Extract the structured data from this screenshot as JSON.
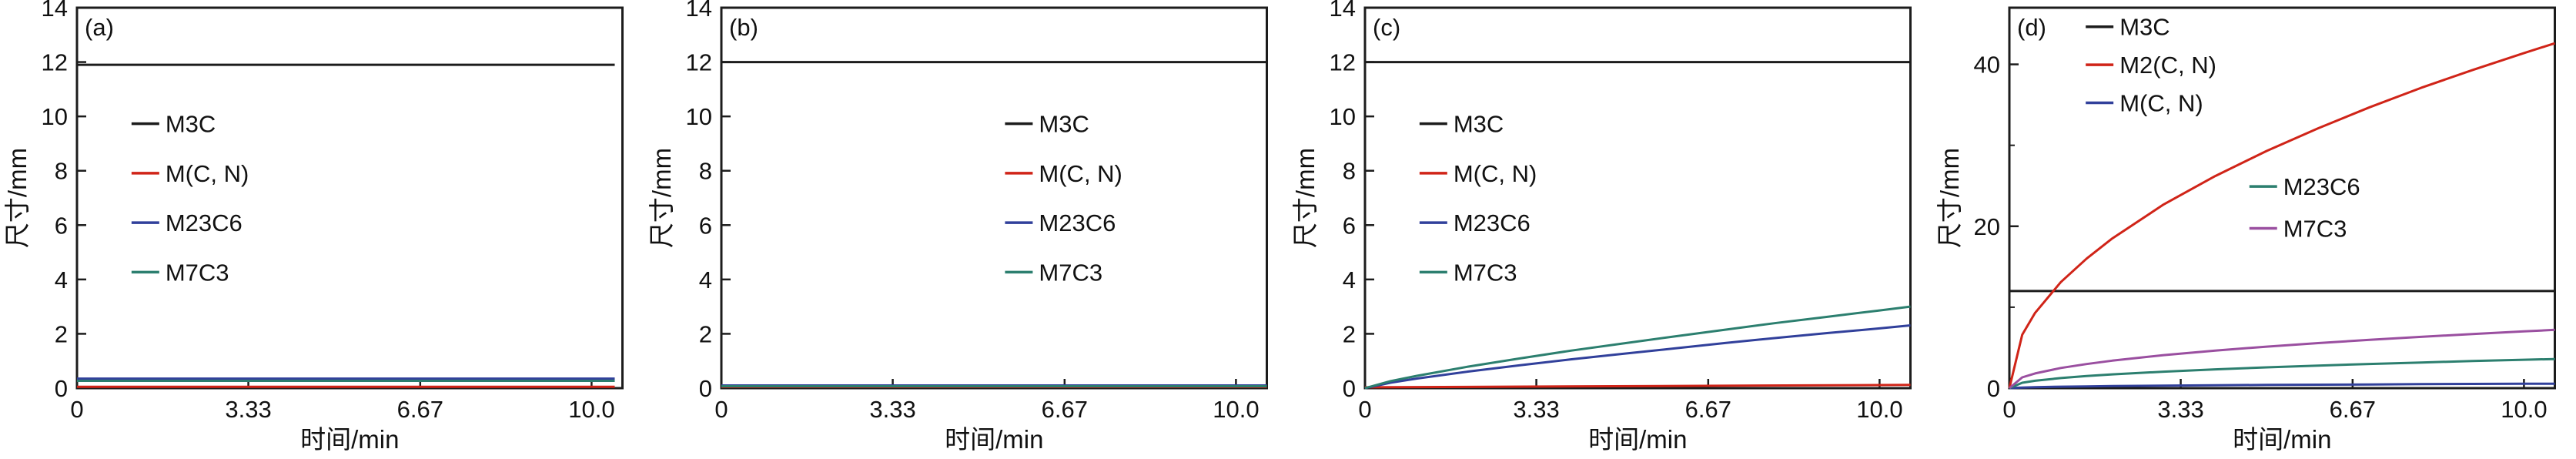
{
  "theme": {
    "background": "#ffffff",
    "axis_color": "#1c1c1c",
    "text_color": "#111111"
  },
  "chart_data": [
    {
      "type": "line",
      "panel_id": "a",
      "panel_label": "(a)",
      "xlabel": "时间/min",
      "ylabel": "尺寸/mm",
      "xlim": [
        0,
        10.6
      ],
      "ylim": [
        0,
        14
      ],
      "xticks": [
        0,
        3.33,
        6.67,
        10.0
      ],
      "xtick_labels": [
        "0",
        "3.33",
        "6.67",
        "10.0"
      ],
      "yticks": [
        0,
        2,
        4,
        6,
        8,
        10,
        12,
        14
      ],
      "ytick_labels": [
        "0",
        "2",
        "4",
        "6",
        "8",
        "10",
        "12",
        "14"
      ],
      "yticks_minor": [],
      "grid": false,
      "legend_position": "inside-left",
      "series": [
        {
          "name": "M3C",
          "color": "#1c1c1c",
          "x": [
            0,
            10.45
          ],
          "y": [
            11.9,
            11.9
          ],
          "legend_pos": [
            0.1,
            0.695
          ]
        },
        {
          "name": "M(C, N)",
          "color": "#d02418",
          "x": [
            0,
            10.45
          ],
          "y": [
            0.05,
            0.05
          ],
          "legend_pos": [
            0.1,
            0.565
          ]
        },
        {
          "name": "M23C6",
          "color": "#31409b",
          "x": [
            0,
            10.45
          ],
          "y": [
            0.35,
            0.35
          ],
          "legend_pos": [
            0.1,
            0.435
          ]
        },
        {
          "name": "M7C3",
          "color": "#2c7f6f",
          "x": [
            0,
            10.45
          ],
          "y": [
            0.27,
            0.27
          ],
          "legend_pos": [
            0.1,
            0.305
          ]
        }
      ]
    },
    {
      "type": "line",
      "panel_id": "b",
      "panel_label": "(b)",
      "xlabel": "时间/min",
      "ylabel": "尺寸/mm",
      "xlim": [
        0,
        10.6
      ],
      "ylim": [
        0,
        14
      ],
      "xticks": [
        0,
        3.33,
        6.67,
        10.0
      ],
      "xtick_labels": [
        "0",
        "3.33",
        "6.67",
        "10.0"
      ],
      "yticks": [
        0,
        2,
        4,
        6,
        8,
        10,
        12,
        14
      ],
      "ytick_labels": [
        "0",
        "2",
        "4",
        "6",
        "8",
        "10",
        "12",
        "14"
      ],
      "yticks_minor": [],
      "grid": false,
      "legend_position": "inside-right",
      "series": [
        {
          "name": "M3C",
          "color": "#1c1c1c",
          "x": [
            0,
            10.6
          ],
          "y": [
            12.0,
            12.0
          ],
          "legend_pos": [
            0.52,
            0.695
          ]
        },
        {
          "name": "M(C, N)",
          "color": "#d02418",
          "x": [
            0,
            10.6
          ],
          "y": [
            0.05,
            0.05
          ],
          "legend_pos": [
            0.52,
            0.565
          ]
        },
        {
          "name": "M23C6",
          "color": "#31409b",
          "x": [
            0,
            10.6
          ],
          "y": [
            0.1,
            0.1
          ],
          "legend_pos": [
            0.52,
            0.435
          ]
        },
        {
          "name": "M7C3",
          "color": "#2c7f6f",
          "x": [
            0,
            10.6
          ],
          "y": [
            0.07,
            0.07
          ],
          "legend_pos": [
            0.52,
            0.305
          ]
        }
      ]
    },
    {
      "type": "line",
      "panel_id": "c",
      "panel_label": "(c)",
      "xlabel": "时间/min",
      "ylabel": "尺寸/mm",
      "xlim": [
        0,
        10.6
      ],
      "ylim": [
        0,
        14
      ],
      "xticks": [
        0,
        3.33,
        6.67,
        10.0
      ],
      "xtick_labels": [
        "0",
        "3.33",
        "6.67",
        "10.0"
      ],
      "yticks": [
        0,
        2,
        4,
        6,
        8,
        10,
        12,
        14
      ],
      "ytick_labels": [
        "0",
        "2",
        "4",
        "6",
        "8",
        "10",
        "12",
        "14"
      ],
      "yticks_minor": [],
      "grid": false,
      "legend_position": "inside-left",
      "series": [
        {
          "name": "M3C",
          "color": "#1c1c1c",
          "x": [
            0,
            10.6
          ],
          "y": [
            12.0,
            12.0
          ],
          "legend_pos": [
            0.1,
            0.695
          ]
        },
        {
          "name": "M(C, N)",
          "color": "#d02418",
          "x": [
            0,
            10.6
          ],
          "y": [
            0.03,
            0.12
          ],
          "legend_pos": [
            0.1,
            0.565
          ]
        },
        {
          "name": "M23C6",
          "color": "#31409b",
          "x": [
            0,
            0.5,
            1,
            2,
            3,
            4,
            5,
            6,
            7,
            8,
            9,
            10,
            10.6
          ],
          "y": [
            0,
            0.2,
            0.35,
            0.61,
            0.84,
            1.06,
            1.26,
            1.46,
            1.66,
            1.85,
            2.03,
            2.2,
            2.31
          ],
          "legend_pos": [
            0.1,
            0.435
          ]
        },
        {
          "name": "M7C3",
          "color": "#2c7f6f",
          "x": [
            0,
            0.5,
            1,
            2,
            3,
            4,
            5,
            6,
            7,
            8,
            9,
            10,
            10.6
          ],
          "y": [
            0,
            0.26,
            0.45,
            0.79,
            1.09,
            1.38,
            1.64,
            1.9,
            2.15,
            2.4,
            2.63,
            2.86,
            3.0
          ],
          "legend_pos": [
            0.1,
            0.305
          ]
        }
      ]
    },
    {
      "type": "line",
      "panel_id": "d",
      "panel_label": "(d)",
      "xlabel": "时间/min",
      "ylabel": "尺寸/mm",
      "xlim": [
        0,
        10.6
      ],
      "ylim": [
        0,
        47
      ],
      "xticks": [
        0,
        3.33,
        6.67,
        10.0
      ],
      "xtick_labels": [
        "0",
        "3.33",
        "6.67",
        "10.0"
      ],
      "yticks": [
        0,
        20,
        40
      ],
      "ytick_labels": [
        "0",
        "20",
        "40"
      ],
      "yticks_minor": [
        10,
        30
      ],
      "grid": false,
      "legend_position": "inside-top-left-and-middle-right",
      "series": [
        {
          "name": "M3C",
          "color": "#1c1c1c",
          "x": [
            0,
            10.6
          ],
          "y": [
            12.0,
            12.0
          ],
          "legend_pos": [
            0.14,
            0.95
          ]
        },
        {
          "name": "M2(C, N)",
          "color": "#d02418",
          "x": [
            0,
            0.25,
            0.5,
            1,
            1.5,
            2,
            3,
            4,
            5,
            6,
            7,
            8,
            9,
            10,
            10.6
          ],
          "y": [
            0,
            6.6,
            9.3,
            13.1,
            16.0,
            18.5,
            22.7,
            26.2,
            29.3,
            32.1,
            34.7,
            37.1,
            39.3,
            41.4,
            42.6
          ],
          "legend_pos": [
            0.14,
            0.85
          ]
        },
        {
          "name": "M(C, N)",
          "color": "#31409b",
          "x": [
            0,
            0.25,
            0.5,
            1,
            1.5,
            2,
            3,
            4,
            5,
            6,
            7,
            8,
            9,
            10,
            10.6
          ],
          "y": [
            0,
            0.08,
            0.12,
            0.18,
            0.22,
            0.26,
            0.31,
            0.36,
            0.4,
            0.43,
            0.46,
            0.49,
            0.52,
            0.54,
            0.55
          ],
          "legend_pos": [
            0.14,
            0.75
          ]
        },
        {
          "name": "M23C6",
          "color": "#2c7f6f",
          "x": [
            0,
            0.25,
            0.5,
            1,
            1.5,
            2,
            3,
            4,
            5,
            6,
            7,
            8,
            9,
            10,
            10.6
          ],
          "y": [
            0,
            0.67,
            0.91,
            1.25,
            1.5,
            1.7,
            2.04,
            2.32,
            2.57,
            2.79,
            2.99,
            3.17,
            3.35,
            3.51,
            3.6
          ],
          "legend_pos": [
            0.44,
            0.53
          ]
        },
        {
          "name": "M7C3",
          "color": "#9a4fa0",
          "x": [
            0,
            0.25,
            0.5,
            1,
            1.5,
            2,
            3,
            4,
            5,
            6,
            7,
            8,
            9,
            10,
            10.6
          ],
          "y": [
            0,
            1.33,
            1.82,
            2.49,
            2.98,
            3.4,
            4.08,
            4.64,
            5.13,
            5.57,
            5.97,
            6.34,
            6.69,
            7.01,
            7.2
          ],
          "legend_pos": [
            0.44,
            0.42
          ]
        }
      ]
    }
  ]
}
